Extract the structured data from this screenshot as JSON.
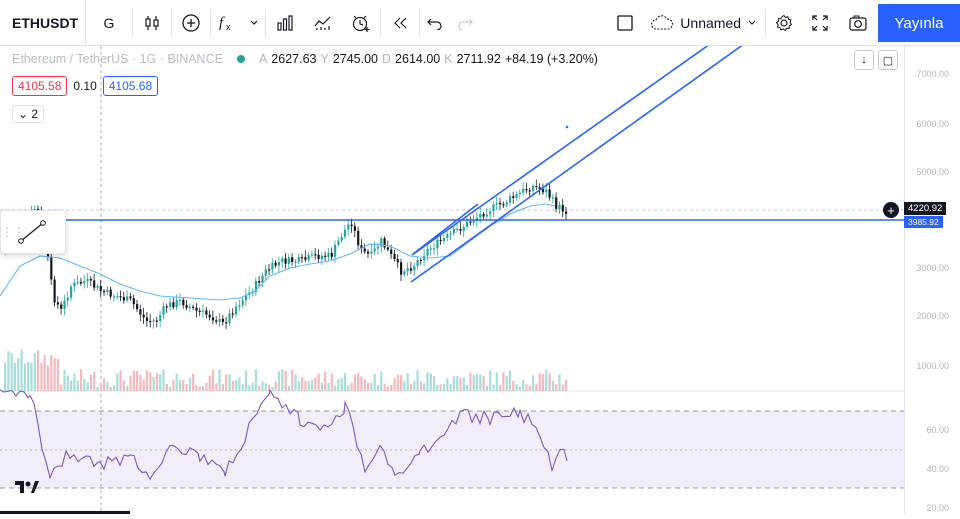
{
  "toolbar": {
    "symbol": "ETHUSDT",
    "interval": "G",
    "unnamed_label": "Unnamed",
    "publish_label": "Yayınla"
  },
  "legend": {
    "title": "Ethereum / TetherUS · 1G · BINANCE",
    "open_label": "A",
    "open": "2627.63",
    "high_label": "Y",
    "high": "2745.00",
    "low_label": "D",
    "low": "2614.00",
    "close_label": "K",
    "close": "2711.92",
    "change": "+84.19 (+3.20%)"
  },
  "bidask": {
    "bid": "4105.58",
    "spread": "0.10",
    "ask": "4105.68"
  },
  "collapse_label": "2",
  "price_axis": {
    "ticks": [
      "7000.00",
      "6000.00",
      "5000.00",
      "3000.00",
      "2000.00",
      "1000.00"
    ],
    "rsi_ticks": [
      "60.00",
      "40.00",
      "20.00"
    ],
    "current_price": "4220.92",
    "line_price": "3985.92"
  },
  "colors": {
    "accent": "#2962ff",
    "up": "#26a69a",
    "down": "#f23645",
    "rsi": "#7e57c2"
  }
}
